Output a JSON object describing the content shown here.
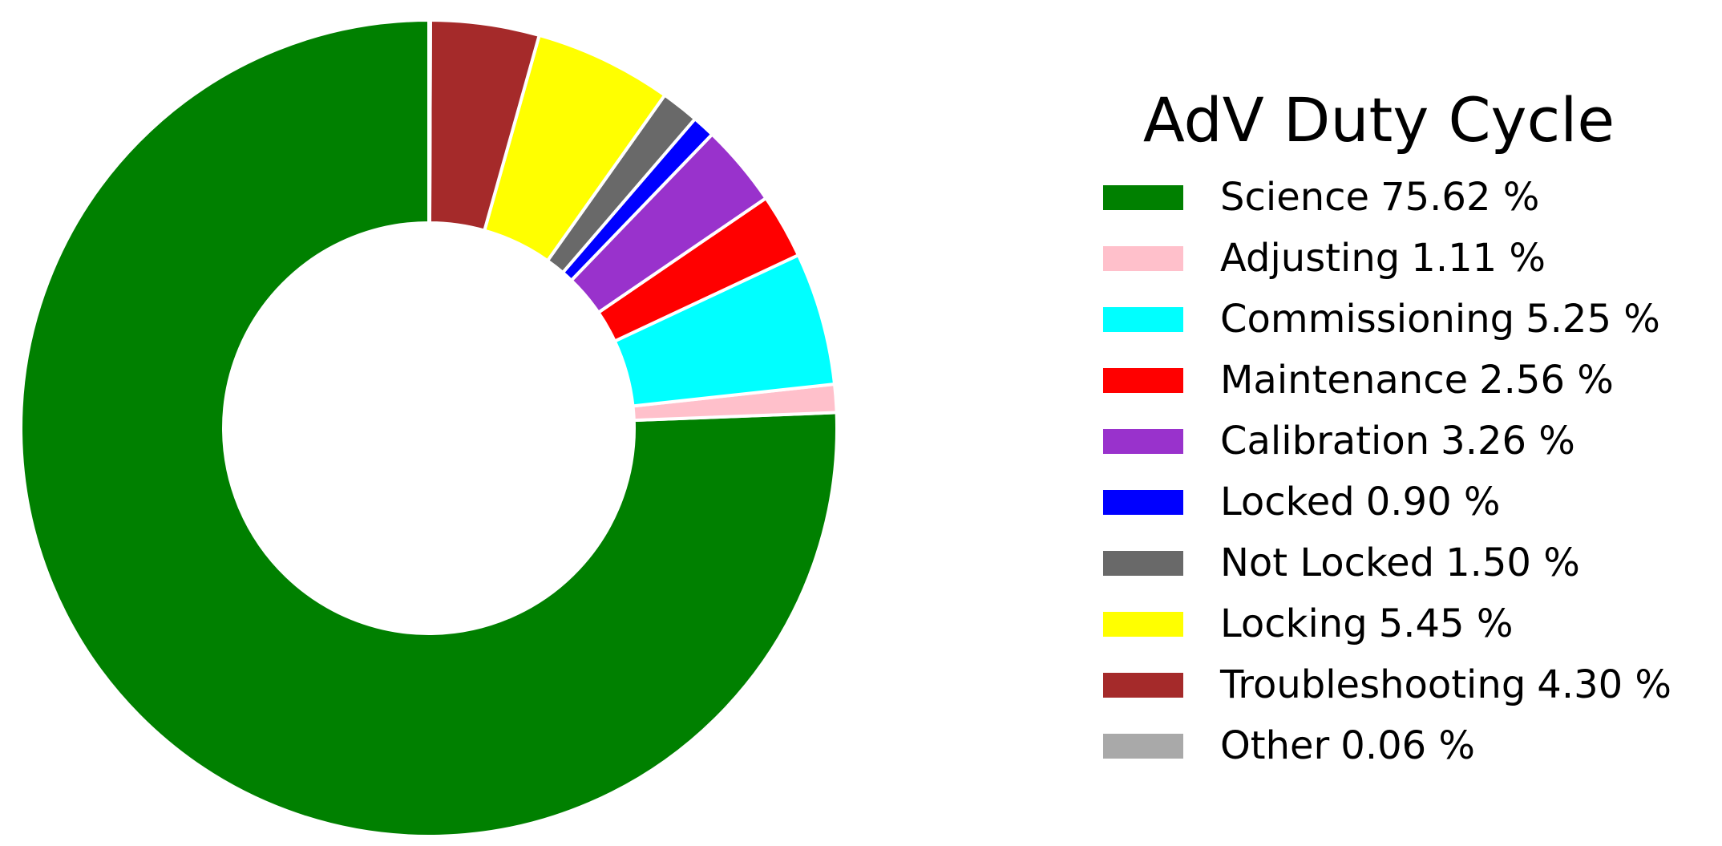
{
  "chart_data": {
    "type": "pie",
    "variant": "donut",
    "title": "AdV Duty Cycle",
    "unit": "%",
    "legend_position": "right",
    "slices": [
      {
        "label": "Science",
        "value": 75.62,
        "value_label": "75.62 %",
        "color": "#008000"
      },
      {
        "label": "Adjusting",
        "value": 1.11,
        "value_label": "1.11 %",
        "color": "#ffc0cb"
      },
      {
        "label": "Commissioning",
        "value": 5.25,
        "value_label": "5.25 %",
        "color": "#00ffff"
      },
      {
        "label": "Maintenance",
        "value": 2.56,
        "value_label": "2.56 %",
        "color": "#ff0000"
      },
      {
        "label": "Calibration",
        "value": 3.26,
        "value_label": "3.26 %",
        "color": "#9932cc"
      },
      {
        "label": "Locked",
        "value": 0.9,
        "value_label": "0.90 %",
        "color": "#0000ff"
      },
      {
        "label": "Not Locked",
        "value": 1.5,
        "value_label": "1.50 %",
        "color": "#696969"
      },
      {
        "label": "Locking",
        "value": 5.45,
        "value_label": "5.45 %",
        "color": "#ffff00"
      },
      {
        "label": "Troubleshooting",
        "value": 4.3,
        "value_label": "4.30 %",
        "color": "#a52a2a"
      },
      {
        "label": "Other",
        "value": 0.06,
        "value_label": "0.06 %",
        "color": "#a9a9a9"
      }
    ]
  }
}
